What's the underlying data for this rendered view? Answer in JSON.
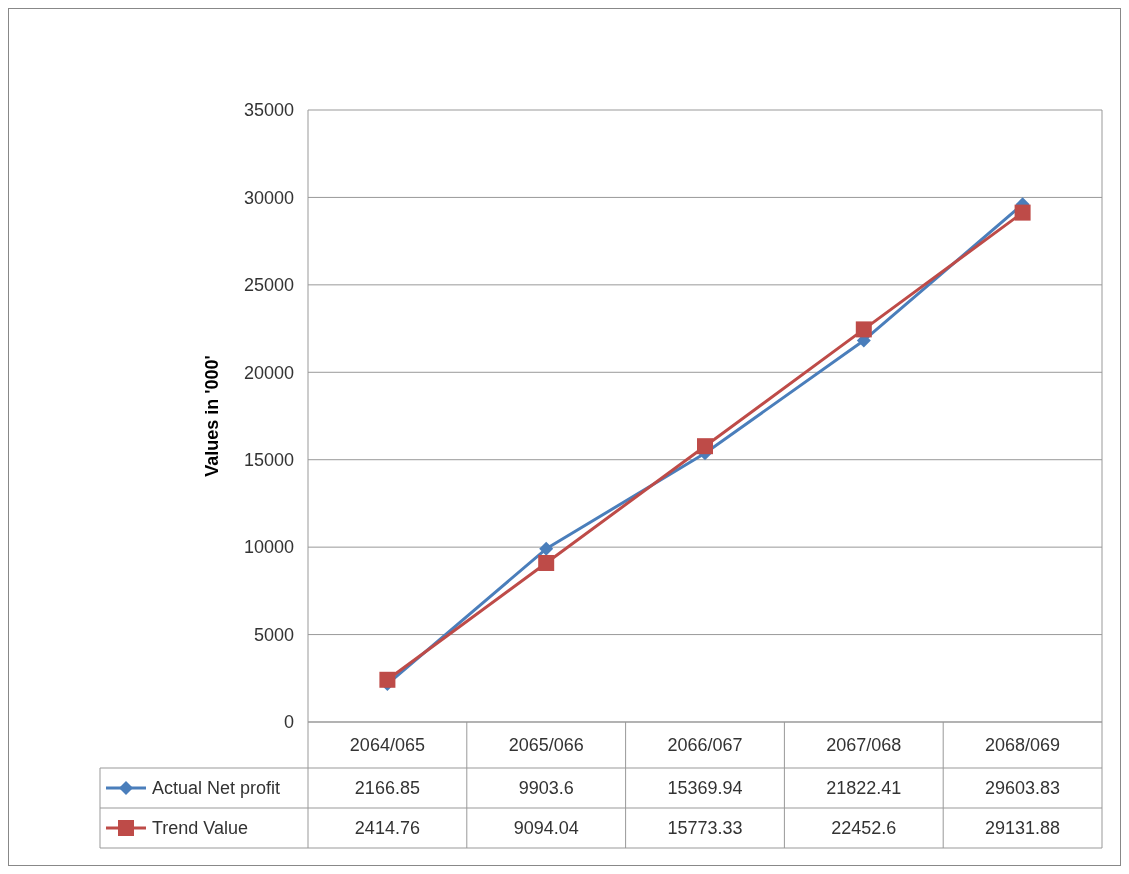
{
  "chart_data": {
    "type": "line",
    "ylabel": "Values in '000'",
    "categories": [
      "2064/065",
      "2065/066",
      "2066/067",
      "2067/068",
      "2068/069"
    ],
    "series": [
      {
        "name": "Actual Net profit",
        "color": "#4a7ebb",
        "marker": "diamond",
        "values": [
          2166.85,
          9903.6,
          15369.94,
          21822.41,
          29603.83
        ]
      },
      {
        "name": "Trend Value",
        "color": "#be4b48",
        "marker": "square",
        "values": [
          2414.76,
          9094.04,
          15773.33,
          22452.6,
          29131.88
        ]
      }
    ],
    "ylim": [
      0,
      35000
    ],
    "yticks": [
      0,
      5000,
      10000,
      15000,
      20000,
      25000,
      30000,
      35000
    ],
    "grid": "y",
    "legend": "bottom",
    "data_labels": true
  }
}
